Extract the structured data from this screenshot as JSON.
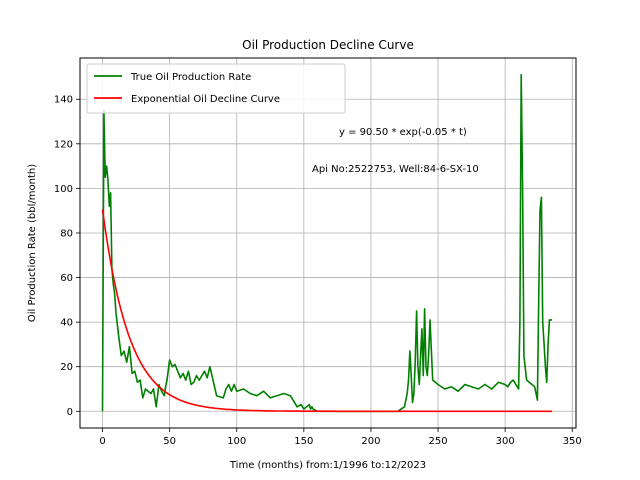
{
  "chart_data": {
    "type": "line",
    "title": "Oil Production Decline Curve",
    "xlabel": "Time (months) from:1/1996 to:12/2023",
    "ylabel": "Oil Production Rate (bbl/month)",
    "xlim": [
      -16.8,
      352.8
    ],
    "ylim": [
      -7.5,
      158.5
    ],
    "xticks": [
      0,
      50,
      100,
      150,
      200,
      250,
      300,
      350
    ],
    "yticks": [
      0,
      20,
      40,
      60,
      80,
      100,
      120,
      140
    ],
    "grid": true,
    "legend_position": "upper-left",
    "annotations": [
      {
        "text": "y = 90.50 * exp(-0.05 * t)",
        "x": 175,
        "y": 122
      },
      {
        "text": "Api No:2522753, Well:84-6-SX-10",
        "x": 155,
        "y": 106
      }
    ],
    "series": [
      {
        "name": "True Oil Production Rate",
        "color": "#008000",
        "x": [
          0,
          1,
          2,
          3,
          4,
          5,
          6,
          7,
          8,
          9,
          10,
          12,
          14,
          16,
          18,
          20,
          22,
          24,
          26,
          28,
          30,
          32,
          34,
          36,
          38,
          40,
          42,
          44,
          46,
          47,
          48,
          50,
          52,
          54,
          56,
          58,
          60,
          62,
          64,
          66,
          68,
          70,
          72,
          74,
          76,
          78,
          80,
          85,
          90,
          92,
          94,
          96,
          98,
          100,
          105,
          110,
          115,
          120,
          125,
          130,
          135,
          140,
          145,
          148,
          150,
          152,
          154,
          155,
          156,
          157,
          160,
          180,
          200,
          220,
          225,
          226,
          227,
          228,
          229,
          230,
          231,
          232,
          233,
          234,
          235,
          236,
          237,
          238,
          239,
          240,
          241,
          242,
          243,
          244,
          246,
          248,
          250,
          255,
          260,
          265,
          270,
          275,
          280,
          285,
          290,
          295,
          300,
          302,
          304,
          306,
          308,
          310,
          311,
          312,
          313,
          314,
          316,
          318,
          320,
          322,
          324,
          325,
          326,
          327,
          328,
          329,
          330,
          331,
          332,
          333,
          334,
          335
        ],
        "y": [
          0,
          135,
          105,
          110,
          104,
          92,
          98,
          64,
          57,
          53,
          44,
          34,
          25,
          27,
          22,
          29,
          17,
          18,
          13,
          14,
          6,
          10,
          9,
          8,
          10,
          2,
          12,
          9,
          7,
          11,
          14,
          23,
          20,
          21,
          18,
          15,
          17,
          14,
          18,
          12,
          13,
          16,
          14,
          16,
          18,
          15,
          20,
          7,
          6,
          10,
          12,
          9,
          12,
          9,
          10,
          8,
          7,
          9,
          6,
          7,
          8,
          7,
          2,
          3,
          1,
          2,
          3,
          1,
          2,
          1,
          0,
          0,
          0,
          0,
          2,
          5,
          8,
          14,
          27,
          16,
          4,
          8,
          22,
          45,
          20,
          12,
          25,
          37,
          16,
          46,
          20,
          16,
          25,
          41,
          14,
          13,
          12,
          10,
          11,
          9,
          12,
          11,
          10,
          12,
          10,
          13,
          12,
          11,
          13,
          14,
          12,
          10,
          40,
          151,
          100,
          25,
          14,
          13,
          12,
          11,
          5,
          50,
          90,
          96,
          40,
          30,
          20,
          13,
          30,
          41,
          41,
          41
        ]
      },
      {
        "name": "Exponential Oil Decline Curve",
        "color": "#ff0000",
        "model": {
          "a": 90.5,
          "b": 0.05,
          "t_start": 0,
          "t_end": 335
        }
      }
    ]
  }
}
